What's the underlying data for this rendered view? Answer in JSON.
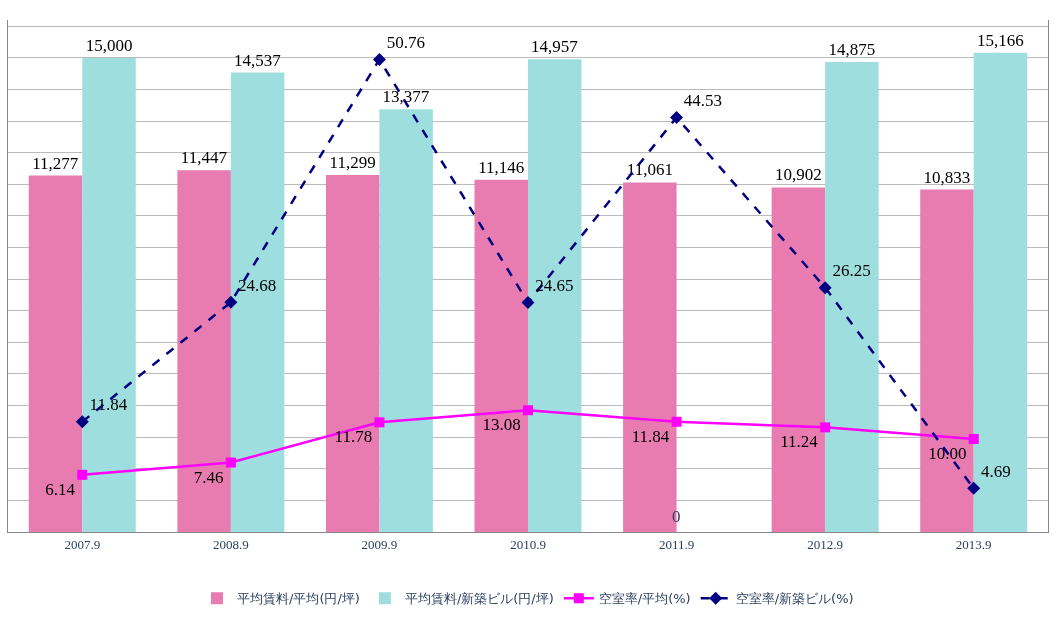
{
  "chart_data": {
    "type": "bar",
    "categories": [
      "2007.9",
      "2008.9",
      "2009.9",
      "2010.9",
      "2011.9",
      "2012.9",
      "2013.9"
    ],
    "series": [
      {
        "name": "平均賃料/平均(円/坪)",
        "color": "#e87bb0",
        "values": [
          11277,
          11447,
          11299,
          11146,
          11061,
          10902,
          10833
        ],
        "value_labels": [
          "11,277",
          "11,447",
          "11,299",
          "11,146",
          "11,061",
          "10,902",
          "10,833"
        ]
      },
      {
        "name": "平均賃料/新築ビル(円/坪)",
        "color": "#9fdede",
        "values": [
          15000,
          14537,
          13377,
          14957,
          null,
          14875,
          15166
        ],
        "value_labels": [
          "15,000",
          "14,537",
          "13,377",
          "14,957",
          null,
          "14,875",
          "15,166"
        ]
      },
      {
        "name": "空室率/平均(%)",
        "type": "line",
        "axis": "y2",
        "color": "#ff00ff",
        "marker": "square",
        "line_style": "solid",
        "values": [
          6.14,
          7.46,
          11.78,
          13.08,
          11.84,
          11.24,
          10.0
        ],
        "value_labels": [
          "6.14",
          "7.46",
          "11.78",
          "13.08",
          "11.84",
          "11.24",
          "10.00"
        ]
      },
      {
        "name": "空室率/新築ビル(%)",
        "type": "line",
        "axis": "y2",
        "color": "#000080",
        "marker": "diamond",
        "line_style": "dashed",
        "values": [
          11.84,
          24.68,
          50.76,
          24.65,
          44.53,
          26.25,
          4.69
        ],
        "value_labels": [
          "11.84",
          "24.68",
          "50.76",
          "24.65",
          "44.53",
          "26.25",
          "4.69"
        ]
      }
    ],
    "annotations": [
      {
        "text": "0",
        "x": "2011.9",
        "y": 0
      }
    ],
    "ylim": [
      0,
      16200
    ],
    "y2lim": [
      0,
      55
    ],
    "grid": "y",
    "legend": "bottom",
    "tick_labels": "x"
  }
}
